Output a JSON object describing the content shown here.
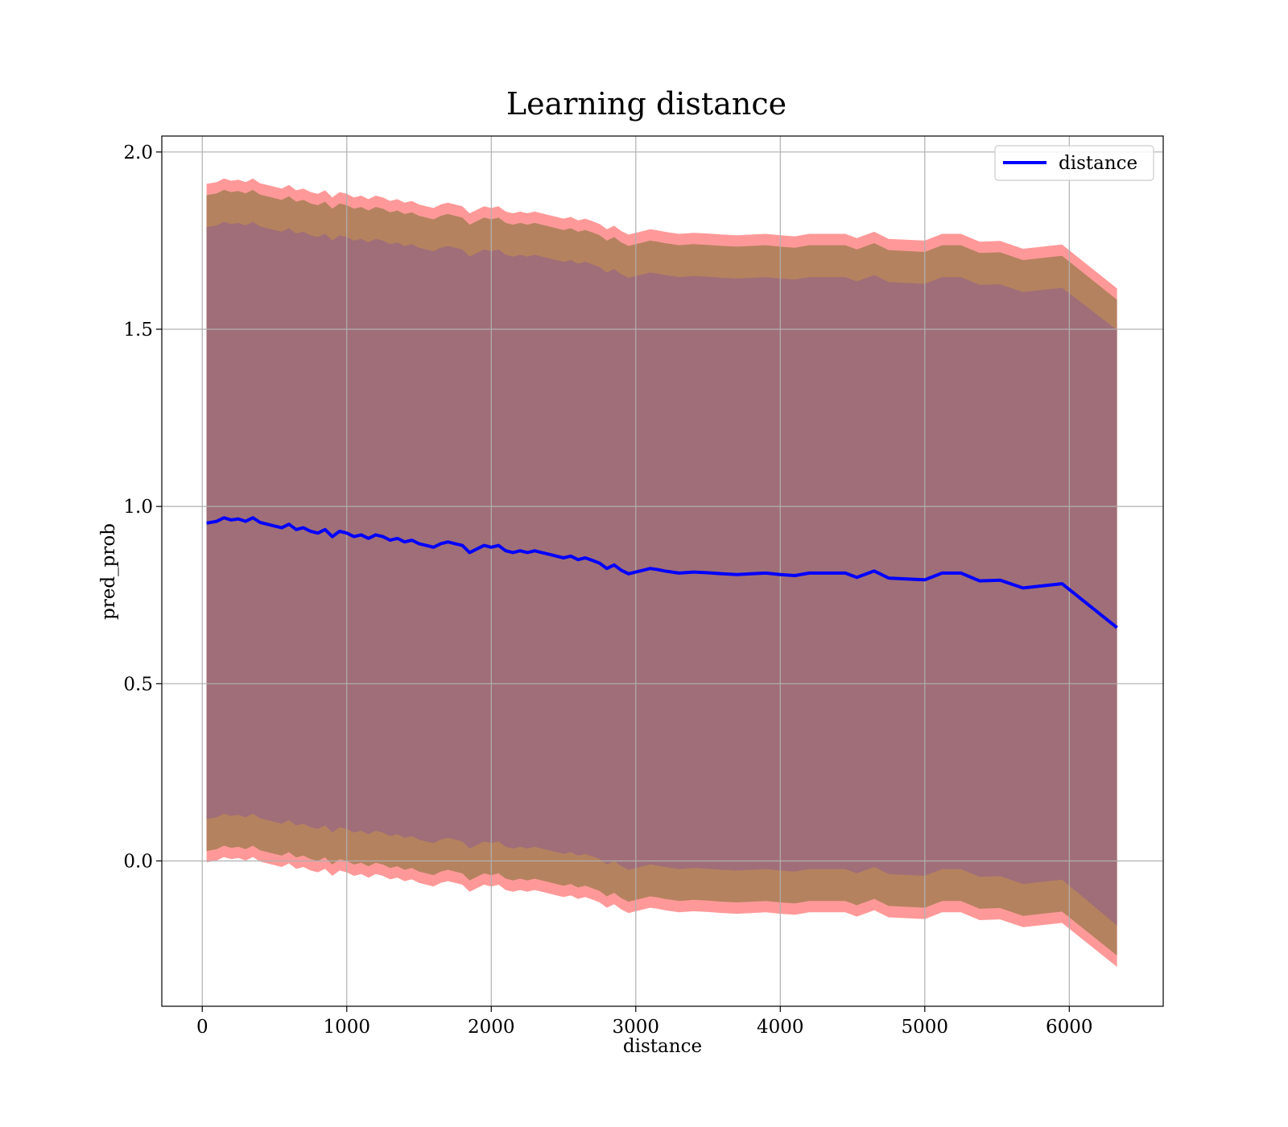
{
  "chart_data": {
    "type": "line",
    "title": "Learning distance",
    "xlabel": "distance",
    "ylabel": "pred_prob",
    "xlim": [
      -280,
      6650
    ],
    "ylim": [
      -0.41,
      2.045
    ],
    "xticks": [
      0,
      1000,
      2000,
      3000,
      4000,
      5000,
      6000
    ],
    "yticks": [
      0.0,
      0.5,
      1.0,
      1.5,
      2.0
    ],
    "xtick_labels": [
      "0",
      "1000",
      "2000",
      "3000",
      "4000",
      "5000",
      "6000"
    ],
    "ytick_labels": [
      "0.0",
      "0.5",
      "1.0",
      "1.5",
      "2.0"
    ],
    "grid": true,
    "legend": {
      "placement": "top-right",
      "entries": [
        "distance"
      ]
    },
    "colors": {
      "line": "#0000ff",
      "band_outer": "#ff9999",
      "band_middle": "#b5825f",
      "band_inner": "#a06e78"
    },
    "series": [
      {
        "name": "distance",
        "x": [
          30,
          100,
          150,
          200,
          250,
          300,
          350,
          400,
          450,
          500,
          550,
          600,
          650,
          700,
          750,
          800,
          850,
          900,
          950,
          1000,
          1050,
          1100,
          1150,
          1200,
          1250,
          1300,
          1350,
          1400,
          1450,
          1500,
          1550,
          1600,
          1650,
          1700,
          1750,
          1800,
          1850,
          1900,
          1950,
          2000,
          2050,
          2100,
          2150,
          2200,
          2250,
          2300,
          2350,
          2400,
          2450,
          2500,
          2550,
          2600,
          2650,
          2700,
          2750,
          2800,
          2850,
          2900,
          2950,
          3000,
          3050,
          3100,
          3150,
          3200,
          3250,
          3300,
          3400,
          3500,
          3600,
          3700,
          3800,
          3900,
          4000,
          4100,
          4200,
          4300,
          4450,
          4530,
          4650,
          4750,
          5000,
          5120,
          5250,
          5380,
          5520,
          5680,
          5950,
          6330
        ],
        "y": [
          0.953,
          0.958,
          0.968,
          0.962,
          0.965,
          0.958,
          0.968,
          0.955,
          0.95,
          0.945,
          0.94,
          0.95,
          0.935,
          0.94,
          0.93,
          0.925,
          0.935,
          0.915,
          0.93,
          0.925,
          0.915,
          0.92,
          0.91,
          0.92,
          0.915,
          0.905,
          0.91,
          0.9,
          0.905,
          0.895,
          0.89,
          0.885,
          0.895,
          0.9,
          0.895,
          0.89,
          0.87,
          0.88,
          0.89,
          0.885,
          0.89,
          0.875,
          0.87,
          0.875,
          0.87,
          0.875,
          0.87,
          0.865,
          0.86,
          0.855,
          0.86,
          0.85,
          0.855,
          0.848,
          0.84,
          0.825,
          0.835,
          0.82,
          0.81,
          0.815,
          0.82,
          0.825,
          0.822,
          0.818,
          0.815,
          0.812,
          0.815,
          0.813,
          0.81,
          0.808,
          0.81,
          0.812,
          0.808,
          0.805,
          0.812,
          0.812,
          0.812,
          0.8,
          0.818,
          0.798,
          0.793,
          0.812,
          0.812,
          0.79,
          0.792,
          0.77,
          0.782,
          0.658
        ],
        "band_inner_halfwidth": [
          0.835,
          0.835,
          0.835,
          0.835,
          0.835,
          0.835,
          0.835,
          0.835,
          0.835,
          0.835,
          0.835,
          0.835,
          0.835,
          0.835,
          0.835,
          0.835,
          0.835,
          0.835,
          0.835,
          0.835,
          0.835,
          0.835,
          0.835,
          0.835,
          0.835,
          0.835,
          0.835,
          0.835,
          0.835,
          0.835,
          0.835,
          0.835,
          0.835,
          0.835,
          0.835,
          0.835,
          0.835,
          0.835,
          0.835,
          0.835,
          0.835,
          0.835,
          0.835,
          0.835,
          0.835,
          0.835,
          0.835,
          0.835,
          0.835,
          0.835,
          0.835,
          0.835,
          0.835,
          0.835,
          0.835,
          0.835,
          0.835,
          0.835,
          0.835,
          0.835,
          0.835,
          0.835,
          0.835,
          0.835,
          0.835,
          0.835,
          0.835,
          0.835,
          0.835,
          0.835,
          0.835,
          0.835,
          0.835,
          0.835,
          0.835,
          0.835,
          0.835,
          0.835,
          0.835,
          0.835,
          0.835,
          0.835,
          0.835,
          0.835,
          0.835,
          0.835,
          0.835,
          0.84
        ],
        "band_middle_halfwidth": [
          0.925,
          0.925,
          0.925,
          0.925,
          0.925,
          0.925,
          0.925,
          0.925,
          0.925,
          0.925,
          0.925,
          0.925,
          0.925,
          0.925,
          0.925,
          0.925,
          0.925,
          0.925,
          0.925,
          0.925,
          0.925,
          0.925,
          0.925,
          0.925,
          0.925,
          0.925,
          0.925,
          0.925,
          0.925,
          0.925,
          0.925,
          0.925,
          0.925,
          0.925,
          0.925,
          0.925,
          0.925,
          0.925,
          0.925,
          0.925,
          0.925,
          0.925,
          0.925,
          0.925,
          0.925,
          0.925,
          0.925,
          0.925,
          0.925,
          0.925,
          0.925,
          0.925,
          0.925,
          0.925,
          0.925,
          0.925,
          0.925,
          0.925,
          0.925,
          0.925,
          0.925,
          0.925,
          0.925,
          0.925,
          0.925,
          0.925,
          0.925,
          0.925,
          0.925,
          0.925,
          0.925,
          0.925,
          0.925,
          0.925,
          0.925,
          0.925,
          0.925,
          0.925,
          0.925,
          0.925,
          0.925,
          0.925,
          0.925,
          0.925,
          0.925,
          0.925,
          0.925,
          0.925
        ],
        "band_outer_halfwidth": [
          0.957,
          0.957,
          0.957,
          0.957,
          0.957,
          0.957,
          0.957,
          0.957,
          0.957,
          0.957,
          0.957,
          0.957,
          0.957,
          0.957,
          0.957,
          0.957,
          0.957,
          0.957,
          0.957,
          0.957,
          0.957,
          0.957,
          0.957,
          0.957,
          0.957,
          0.957,
          0.957,
          0.957,
          0.957,
          0.957,
          0.957,
          0.957,
          0.957,
          0.957,
          0.957,
          0.957,
          0.957,
          0.957,
          0.957,
          0.957,
          0.957,
          0.957,
          0.957,
          0.957,
          0.957,
          0.957,
          0.957,
          0.957,
          0.957,
          0.957,
          0.957,
          0.957,
          0.957,
          0.957,
          0.957,
          0.957,
          0.957,
          0.957,
          0.957,
          0.957,
          0.957,
          0.957,
          0.957,
          0.957,
          0.957,
          0.957,
          0.957,
          0.957,
          0.957,
          0.957,
          0.957,
          0.957,
          0.957,
          0.957,
          0.957,
          0.957,
          0.957,
          0.957,
          0.957,
          0.957,
          0.957,
          0.957,
          0.957,
          0.957,
          0.957,
          0.957,
          0.957,
          0.957
        ]
      }
    ]
  }
}
